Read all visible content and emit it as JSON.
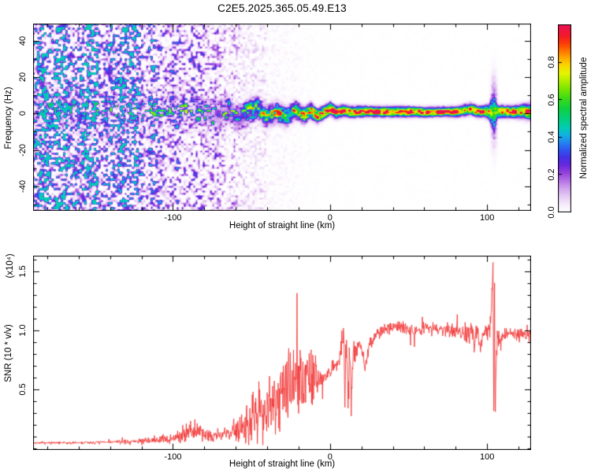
{
  "title": "C2E5.2025.365.05.49.E13",
  "colors": {
    "axis": "#000000",
    "background": "#ffffff",
    "snr_line": "#f23333"
  },
  "chart_data": [
    {
      "type": "heatmap",
      "name": "spectrogram",
      "xlabel": "Height of straight line (km)",
      "ylabel": "Frequency (Hz)",
      "xlim": [
        -189,
        128
      ],
      "ylim": [
        -53.5,
        49.5
      ],
      "xticks": [
        "-100",
        "0",
        "100"
      ],
      "xminor_step": 20,
      "yticks": [
        "-40",
        "-20",
        "0",
        "20",
        "40"
      ],
      "yminor_step": 10,
      "grid": false,
      "colorbar": {
        "label": "Normalized spectral amplitude",
        "ticks": [
          "0.0",
          "0.2",
          "0.4",
          "0.6",
          "0.8"
        ],
        "min": 0,
        "max": 1
      },
      "colormap_stops": [
        [
          0.0,
          "#ffffff"
        ],
        [
          0.04,
          "#f6ebfb"
        ],
        [
          0.08,
          "#e7cdf5"
        ],
        [
          0.13,
          "#cfa0ec"
        ],
        [
          0.17,
          "#b36ee4"
        ],
        [
          0.21,
          "#9340dc"
        ],
        [
          0.25,
          "#6a28dc"
        ],
        [
          0.29,
          "#4530e4"
        ],
        [
          0.33,
          "#2f55ee"
        ],
        [
          0.37,
          "#2383f2"
        ],
        [
          0.41,
          "#12b0e2"
        ],
        [
          0.45,
          "#02ccb4"
        ],
        [
          0.5,
          "#04cf7a"
        ],
        [
          0.55,
          "#0ed042"
        ],
        [
          0.6,
          "#36da1b"
        ],
        [
          0.65,
          "#70e403"
        ],
        [
          0.7,
          "#b2ee00"
        ],
        [
          0.74,
          "#e4f400"
        ],
        [
          0.78,
          "#f8da00"
        ],
        [
          0.82,
          "#ffae00"
        ],
        [
          0.86,
          "#ff7400"
        ],
        [
          0.9,
          "#fb3c05"
        ],
        [
          0.94,
          "#f31a28"
        ],
        [
          1.0,
          "#ea1256"
        ]
      ],
      "band_points": [
        [
          -189,
          2.0,
          7.0,
          0.4
        ],
        [
          -170,
          3.0,
          6.5,
          0.42
        ],
        [
          -155,
          2.0,
          6.5,
          0.45
        ],
        [
          -140,
          3.0,
          6.0,
          0.5
        ],
        [
          -128,
          1.0,
          6.0,
          0.5
        ],
        [
          -115,
          2.0,
          5.5,
          0.52
        ],
        [
          -100,
          1.0,
          5.0,
          0.55
        ],
        [
          -90,
          2.0,
          5.0,
          0.58
        ],
        [
          -80,
          0.0,
          4.5,
          0.6
        ],
        [
          -72,
          -2.0,
          4.5,
          0.6
        ],
        [
          -64,
          2.0,
          4.0,
          0.62
        ],
        [
          -58,
          -3.0,
          4.0,
          0.65
        ],
        [
          -52,
          1.0,
          4.0,
          0.65
        ],
        [
          -46,
          3.0,
          3.5,
          0.68
        ],
        [
          -40,
          -2.0,
          3.5,
          0.7
        ],
        [
          -34,
          1.0,
          3.2,
          0.75
        ],
        [
          -28,
          -2.0,
          3.0,
          0.8
        ],
        [
          -22,
          2.0,
          2.8,
          0.82
        ],
        [
          -16,
          -1.0,
          2.5,
          0.88
        ],
        [
          -12,
          1.5,
          2.4,
          0.92
        ],
        [
          -8,
          -1.5,
          2.2,
          0.95
        ],
        [
          -4,
          0.5,
          2.1,
          0.95
        ],
        [
          0,
          2.8,
          2.0,
          1.0
        ],
        [
          4,
          0.5,
          1.9,
          0.98
        ],
        [
          8,
          1.5,
          1.8,
          1.0
        ],
        [
          14,
          0.8,
          1.7,
          0.98
        ],
        [
          20,
          1.2,
          1.7,
          0.95
        ],
        [
          30,
          1.0,
          1.6,
          0.98
        ],
        [
          40,
          1.0,
          1.6,
          1.0
        ],
        [
          50,
          1.0,
          1.6,
          1.0
        ],
        [
          60,
          0.8,
          1.5,
          1.0
        ],
        [
          70,
          1.0,
          1.5,
          0.98
        ],
        [
          80,
          1.0,
          1.6,
          0.95
        ],
        [
          86,
          2.0,
          1.8,
          0.88
        ],
        [
          90,
          2.5,
          1.8,
          0.85
        ],
        [
          94,
          1.0,
          1.7,
          0.9
        ],
        [
          98,
          1.2,
          1.8,
          0.88
        ],
        [
          101,
          1.0,
          2.2,
          0.8
        ],
        [
          103.5,
          1.0,
          6.5,
          0.55
        ],
        [
          104.5,
          1.0,
          9.0,
          0.5
        ],
        [
          105.5,
          1.0,
          4.0,
          0.7
        ],
        [
          107,
          1.0,
          2.0,
          0.9
        ],
        [
          112,
          1.0,
          1.8,
          1.0
        ],
        [
          118,
          1.0,
          1.9,
          1.0
        ],
        [
          123,
          1.2,
          2.2,
          1.0
        ],
        [
          127,
          1.0,
          2.4,
          1.0
        ]
      ],
      "noise_density_points": [
        [
          -189,
          0.8
        ],
        [
          -160,
          0.78
        ],
        [
          -145,
          0.7
        ],
        [
          -130,
          0.58
        ],
        [
          -115,
          0.5
        ],
        [
          -100,
          0.42
        ],
        [
          -88,
          0.34
        ],
        [
          -75,
          0.24
        ],
        [
          -62,
          0.16
        ],
        [
          -52,
          0.11
        ],
        [
          -44,
          0.08
        ],
        [
          -36,
          0.05
        ],
        [
          -28,
          0.03
        ],
        [
          -20,
          0.016
        ],
        [
          -10,
          0.008
        ],
        [
          0,
          0.004
        ],
        [
          20,
          0.002
        ],
        [
          128,
          0.002
        ]
      ],
      "burst": {
        "km": 104.4,
        "width_km": 1.3,
        "sigma_hz": 11,
        "amp": 0.32
      }
    },
    {
      "type": "line",
      "name": "snr",
      "xlabel": "Height of straight line (km)",
      "ylabel": "SNR (10 * v/v)",
      "ylabel_multiplier": "(x10⁴)",
      "color": "#f23333",
      "xlim": [
        -189,
        128
      ],
      "ylim": [
        -0.015,
        1.632
      ],
      "xticks": [
        "-100",
        "0",
        "100"
      ],
      "xminor_step": 20,
      "yticks": [
        "0.5",
        "1.0",
        "1.5"
      ],
      "yminor_step": 0.1,
      "grid": false,
      "envelope_points": [
        [
          -189,
          0.045,
          0.012
        ],
        [
          -165,
          0.045,
          0.012
        ],
        [
          -145,
          0.05,
          0.015
        ],
        [
          -128,
          0.055,
          0.02
        ],
        [
          -116,
          0.065,
          0.03
        ],
        [
          -106,
          0.075,
          0.045
        ],
        [
          -98,
          0.09,
          0.05
        ],
        [
          -93,
          0.13,
          0.09
        ],
        [
          -88,
          0.16,
          0.1
        ],
        [
          -84,
          0.13,
          0.08
        ],
        [
          -79,
          0.11,
          0.06
        ],
        [
          -74,
          0.11,
          0.06
        ],
        [
          -69,
          0.12,
          0.07
        ],
        [
          -64,
          0.13,
          0.09
        ],
        [
          -59,
          0.16,
          0.12
        ],
        [
          -54,
          0.2,
          0.16
        ],
        [
          -49,
          0.26,
          0.22
        ],
        [
          -44,
          0.32,
          0.28
        ],
        [
          -39,
          0.38,
          0.32
        ],
        [
          -34,
          0.44,
          0.34
        ],
        [
          -29,
          0.48,
          0.36
        ],
        [
          -24,
          0.52,
          0.36
        ],
        [
          -19,
          0.58,
          0.34
        ],
        [
          -14,
          0.62,
          0.32
        ],
        [
          -10,
          0.6,
          0.22
        ],
        [
          -7,
          0.57,
          0.1
        ],
        [
          -4,
          0.6,
          0.06
        ],
        [
          -1,
          0.65,
          0.06
        ],
        [
          2,
          0.69,
          0.06
        ],
        [
          5,
          0.73,
          0.07
        ],
        [
          7,
          0.85,
          0.13
        ],
        [
          8.5,
          1.0,
          0.1
        ],
        [
          9.5,
          0.5,
          0.28
        ],
        [
          10.5,
          0.95,
          0.12
        ],
        [
          11.5,
          0.35,
          0.25
        ],
        [
          12.5,
          0.8,
          0.18
        ],
        [
          13.5,
          0.5,
          0.22
        ],
        [
          15,
          0.78,
          0.12
        ],
        [
          17,
          0.88,
          0.09
        ],
        [
          19,
          0.9,
          0.08
        ],
        [
          21,
          0.78,
          0.1
        ],
        [
          23,
          0.72,
          0.1
        ],
        [
          25,
          0.85,
          0.08
        ],
        [
          28,
          0.95,
          0.06
        ],
        [
          32,
          0.99,
          0.05
        ],
        [
          37,
          1.01,
          0.05
        ],
        [
          42,
          1.03,
          0.05
        ],
        [
          48,
          1.02,
          0.05
        ],
        [
          54,
          1.0,
          0.06
        ],
        [
          60,
          1.02,
          0.05
        ],
        [
          66,
          1.02,
          0.06
        ],
        [
          72,
          1.0,
          0.06
        ],
        [
          78,
          1.0,
          0.07
        ],
        [
          83,
          1.0,
          0.08
        ],
        [
          87,
          0.97,
          0.1
        ],
        [
          90,
          1.0,
          0.11
        ],
        [
          92,
          0.88,
          0.12
        ],
        [
          94,
          1.02,
          0.1
        ],
        [
          96,
          0.85,
          0.1
        ],
        [
          98,
          1.0,
          0.08
        ],
        [
          100,
          0.98,
          0.09
        ],
        [
          102,
          1.05,
          0.12
        ],
        [
          103.2,
          1.3,
          0.15
        ],
        [
          103.8,
          1.58,
          0.04
        ],
        [
          104.2,
          0.12,
          0.06
        ],
        [
          104.7,
          1.6,
          0.04
        ],
        [
          105.1,
          0.08,
          0.05
        ],
        [
          105.6,
          0.7,
          0.12
        ],
        [
          106.5,
          0.95,
          0.08
        ],
        [
          108,
          0.92,
          0.06
        ],
        [
          111,
          0.97,
          0.05
        ],
        [
          115,
          0.98,
          0.05
        ],
        [
          119,
          0.96,
          0.05
        ],
        [
          123,
          0.98,
          0.05
        ],
        [
          127,
          0.95,
          0.06
        ]
      ]
    }
  ]
}
